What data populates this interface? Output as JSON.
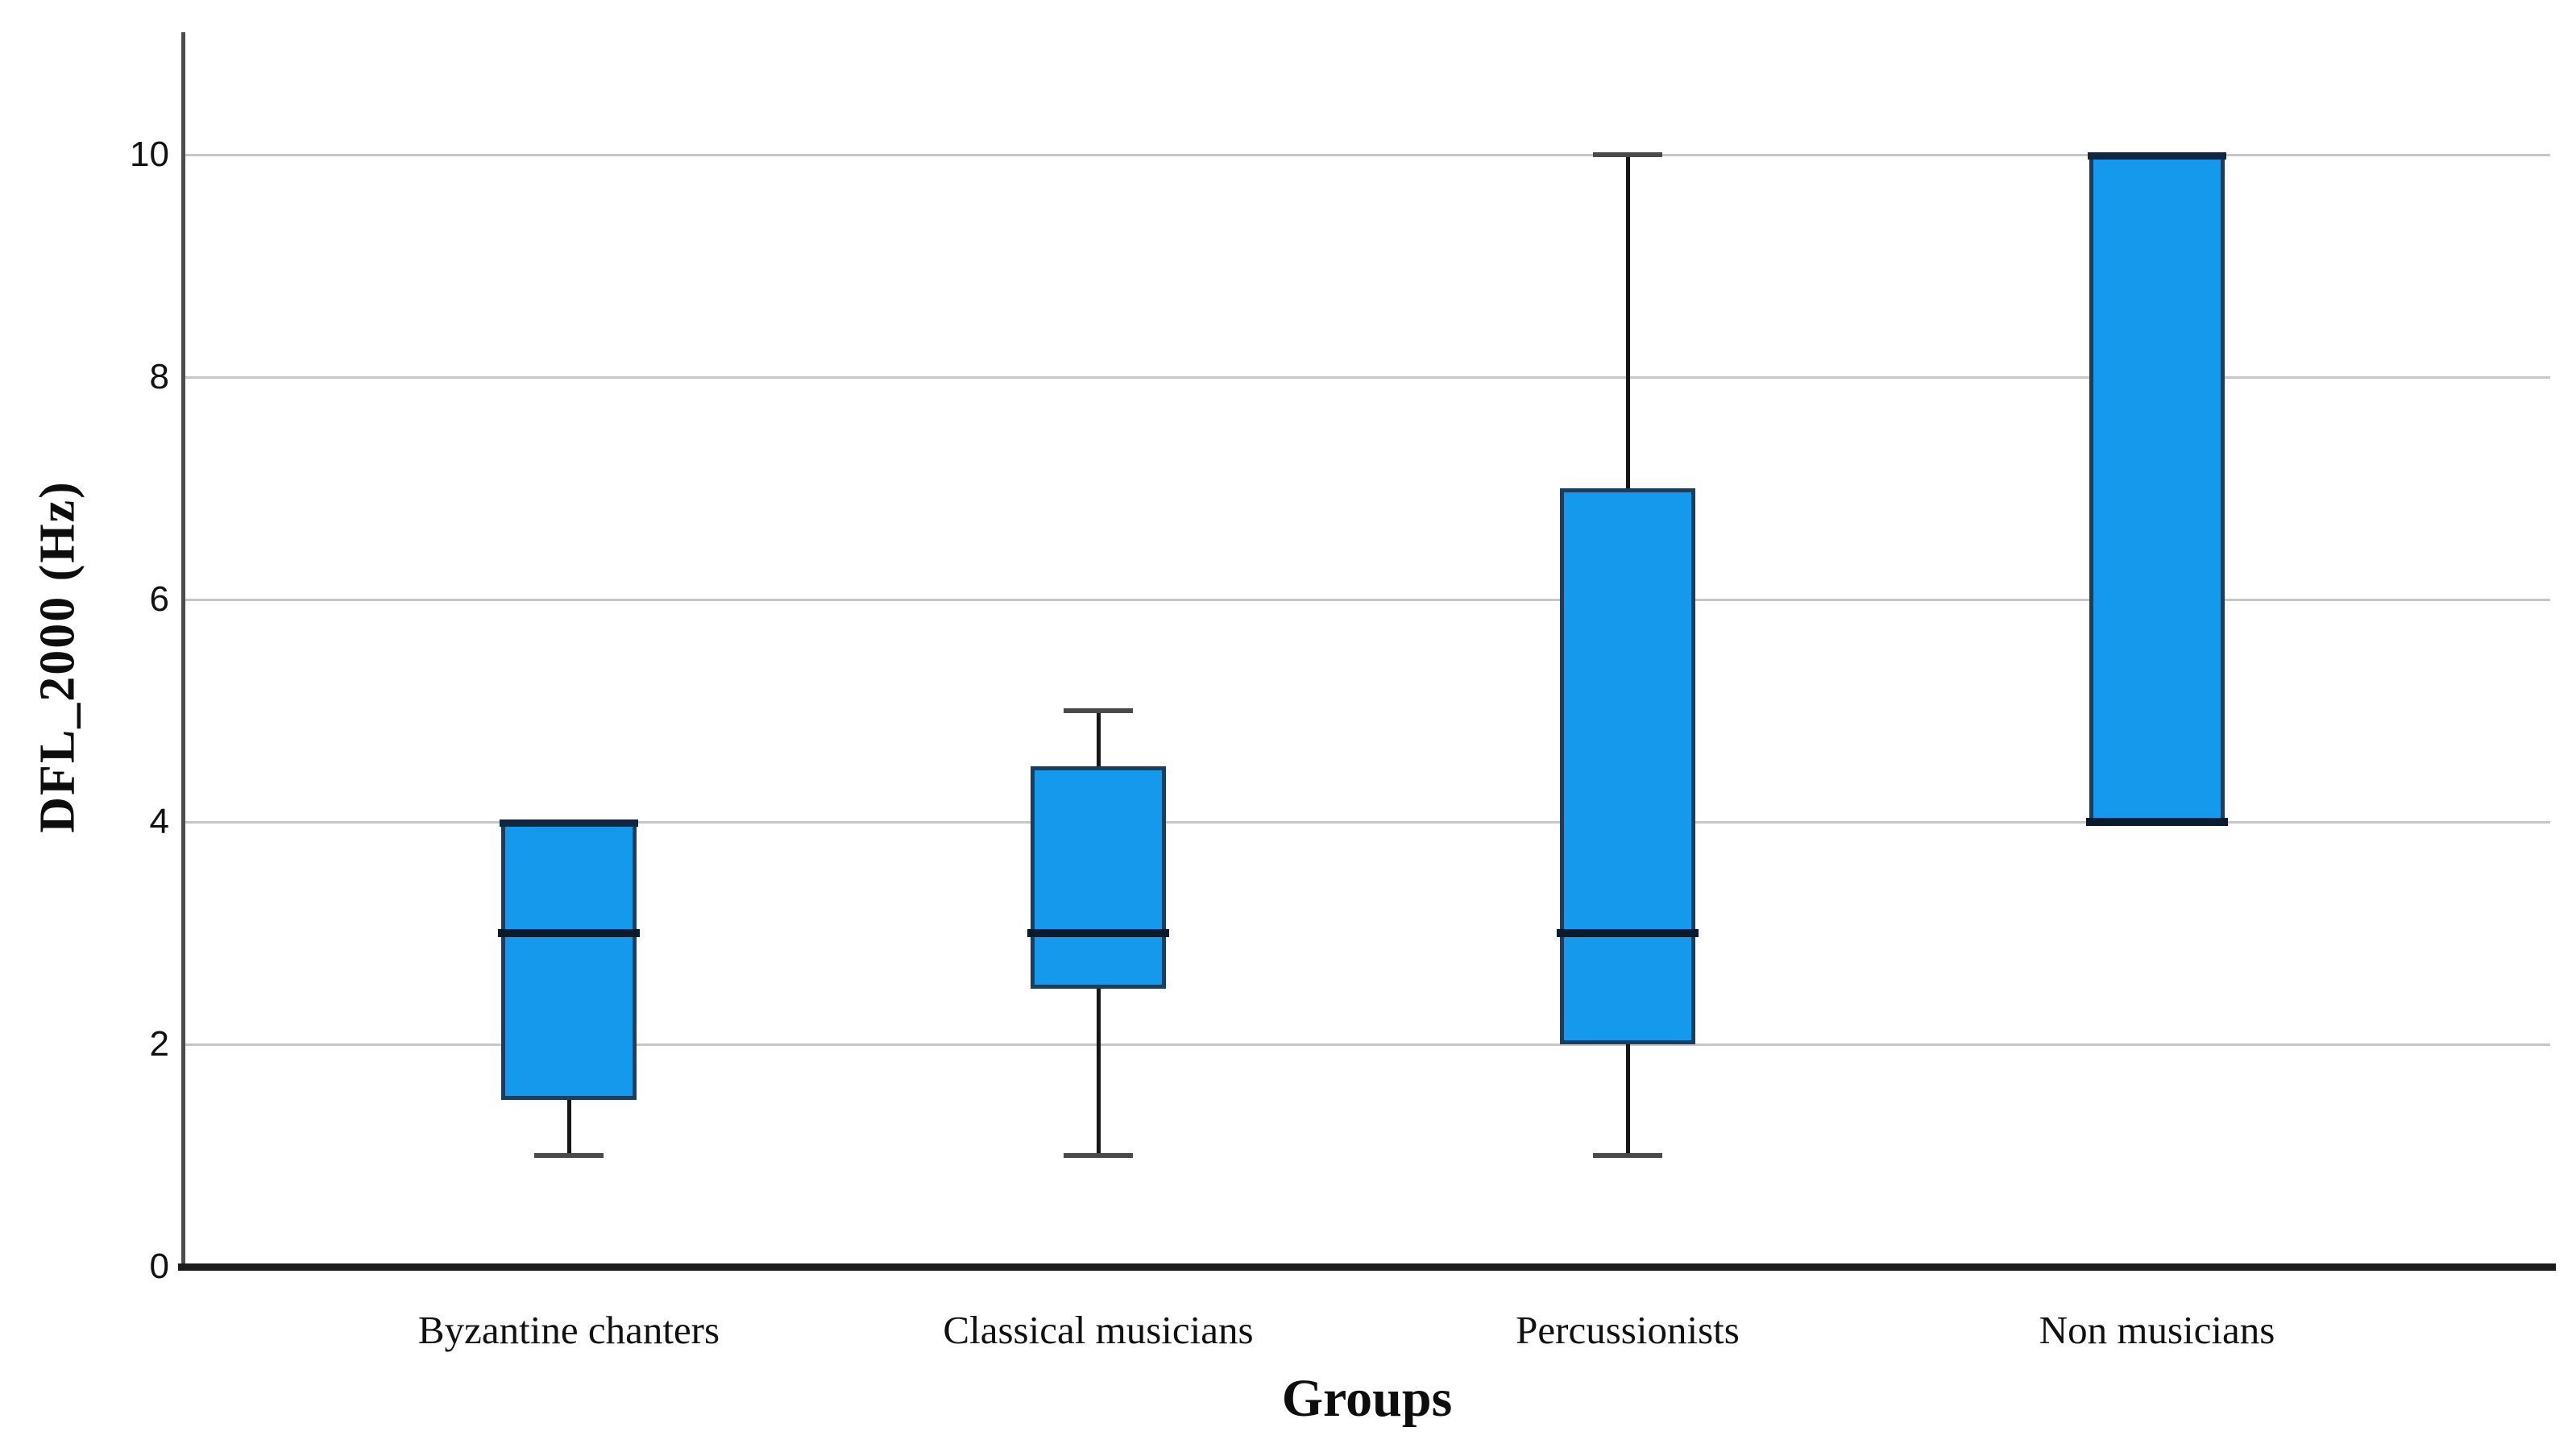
{
  "chart_data": {
    "type": "boxplot",
    "title": "",
    "ylabel": "DFL_2000 (Hz)",
    "xlabel": "Groups",
    "categories": [
      "Byzantine chanters",
      "Classical musicians",
      "Percussionists",
      "Non musicians"
    ],
    "series": [
      {
        "name": "Byzantine chanters",
        "min": 1,
        "q1": 1.5,
        "median": 3,
        "q3": 4,
        "max": 4
      },
      {
        "name": "Classical musicians",
        "min": 1,
        "q1": 2.5,
        "median": 3,
        "q3": 4.5,
        "max": 5
      },
      {
        "name": "Percussionists",
        "min": 1,
        "q1": 2,
        "median": 3,
        "q3": 7,
        "max": 10
      },
      {
        "name": "Non musicians",
        "min": 4,
        "q1": 4,
        "median": 4,
        "q3": 10,
        "max": 10
      }
    ],
    "ylim": [
      0,
      11.1
    ],
    "yticks": [
      0,
      2,
      4,
      6,
      8,
      10
    ],
    "ytick_labels": [
      "0",
      "2",
      "4",
      "6",
      "8",
      "10"
    ],
    "grid": "horizontal-light-gray",
    "legend": "none",
    "colors": {
      "box_fill": "#1499EC",
      "box_border": "#1C3E5E",
      "median": "#0A1B2E",
      "heavy_edge": "#0F2740",
      "whisker": "#161616",
      "whisker_cap": "#4a4a4a",
      "gridline": "#C7C7C7",
      "y_axis": "#4D4D4D",
      "x_axis": "#1C1C1C",
      "text": "#111111"
    }
  }
}
